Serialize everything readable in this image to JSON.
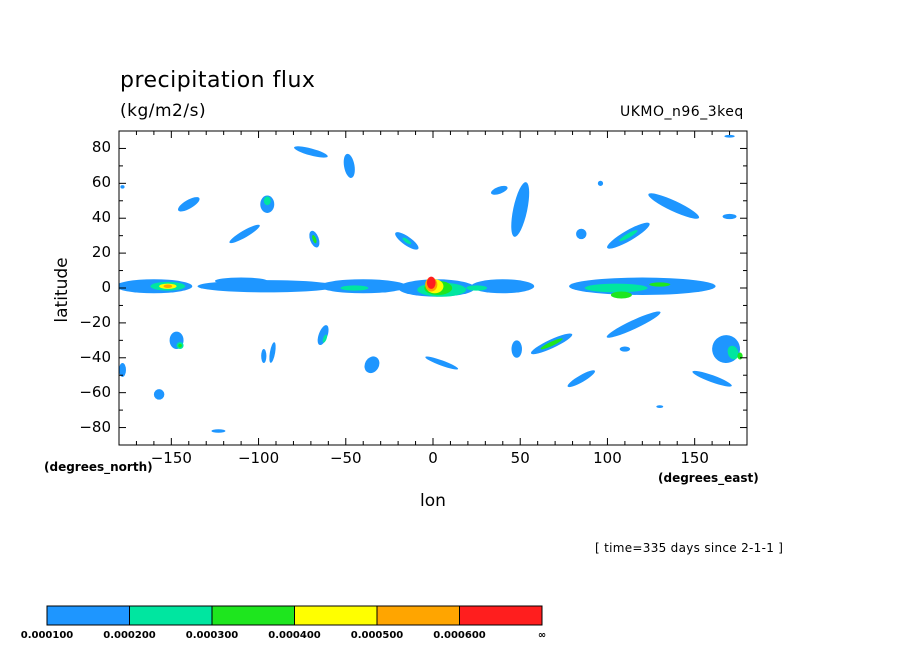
{
  "chart_data": {
    "type": "heatmap",
    "title": "precipitation flux",
    "units": "(kg/m2/s)",
    "source_label": "UKMO_n96_3keq",
    "time_label": "[ time=335 days since 2-1-1 ]",
    "xlabel": "lon",
    "ylabel": "latitude",
    "x_units": "(degrees_east)",
    "y_units": "(degrees_north)",
    "xlim": [
      -180,
      180
    ],
    "ylim": [
      -90,
      90
    ],
    "x_ticks": [
      -150,
      -100,
      -50,
      0,
      50,
      100,
      150
    ],
    "x_tick_labels": [
      "−150",
      "−100",
      "−50",
      "0",
      "50",
      "100",
      "150"
    ],
    "y_ticks": [
      80,
      60,
      40,
      20,
      0,
      -20,
      -40,
      -60,
      -80
    ],
    "y_tick_labels": [
      "80",
      "60",
      "40",
      "20",
      "0",
      "−20",
      "−40",
      "−60",
      "−80"
    ],
    "levels": [
      0.0001,
      0.0002,
      0.0003,
      0.0004,
      0.0005,
      0.0006
    ],
    "level_labels": [
      "0.000100",
      "0.000200",
      "0.000300",
      "0.000400",
      "0.000500",
      "0.000600",
      "∞"
    ],
    "level_colors": [
      "#1e96ff",
      "#00e6a0",
      "#1ee61e",
      "#ffff00",
      "#ffa500",
      "#ff1e1e"
    ],
    "regions": [
      {
        "lon": -70,
        "lat": 78,
        "rx": 10,
        "ry": 2,
        "rot": -15,
        "level": 1
      },
      {
        "lon": -48,
        "lat": 70,
        "rx": 3,
        "ry": 7,
        "rot": 10,
        "level": 1
      },
      {
        "lon": -140,
        "lat": 48,
        "rx": 7,
        "ry": 2.5,
        "rot": 30,
        "level": 1
      },
      {
        "lon": -95,
        "lat": 48,
        "rx": 4,
        "ry": 5,
        "rot": 0,
        "level": 1
      },
      {
        "lon": -95,
        "lat": 50,
        "rx": 2,
        "ry": 2.5,
        "rot": 0,
        "level": 2
      },
      {
        "lon": -108,
        "lat": 31,
        "rx": 10,
        "ry": 2,
        "rot": 30,
        "level": 1
      },
      {
        "lon": -68,
        "lat": 28,
        "rx": 2.5,
        "ry": 5,
        "rot": 20,
        "level": 1
      },
      {
        "lon": -68,
        "lat": 28,
        "rx": 1,
        "ry": 2.5,
        "rot": 20,
        "level": 3
      },
      {
        "lon": -15,
        "lat": 27,
        "rx": 8,
        "ry": 2.5,
        "rot": -35,
        "level": 1
      },
      {
        "lon": -15,
        "lat": 27,
        "rx": 3,
        "ry": 1,
        "rot": -35,
        "level": 2
      },
      {
        "lon": 50,
        "lat": 45,
        "rx": 4,
        "ry": 16,
        "rot": -12,
        "level": 1
      },
      {
        "lon": 38,
        "lat": 56,
        "rx": 5,
        "ry": 2,
        "rot": 20,
        "level": 1
      },
      {
        "lon": 112,
        "lat": 30,
        "rx": 14,
        "ry": 3,
        "rot": 30,
        "level": 1
      },
      {
        "lon": 112,
        "lat": 30,
        "rx": 6,
        "ry": 1.2,
        "rot": 30,
        "level": 2
      },
      {
        "lon": 138,
        "lat": 47,
        "rx": 16,
        "ry": 3,
        "rot": -25,
        "level": 1
      },
      {
        "lon": 170,
        "lat": 41,
        "rx": 4,
        "ry": 1.5,
        "rot": 0,
        "level": 1
      },
      {
        "lon": 85,
        "lat": 31,
        "rx": 3,
        "ry": 3,
        "rot": 0,
        "level": 1
      },
      {
        "lon": -160,
        "lat": 1,
        "rx": 22,
        "ry": 4,
        "rot": 0,
        "level": 1
      },
      {
        "lon": -152,
        "lat": 1,
        "rx": 10,
        "ry": 2.5,
        "rot": 0,
        "level": 2
      },
      {
        "lon": -152,
        "lat": 1,
        "rx": 5,
        "ry": 1.5,
        "rot": 0,
        "level": 4
      },
      {
        "lon": -152,
        "lat": 1,
        "rx": 2.5,
        "ry": 1,
        "rot": 0,
        "level": 5
      },
      {
        "lon": -95,
        "lat": 1,
        "rx": 40,
        "ry": 3.5,
        "rot": 0,
        "level": 1
      },
      {
        "lon": -110,
        "lat": 4,
        "rx": 15,
        "ry": 2,
        "rot": 0,
        "level": 1
      },
      {
        "lon": -40,
        "lat": 1,
        "rx": 25,
        "ry": 4,
        "rot": 0,
        "level": 1
      },
      {
        "lon": -45,
        "lat": 0,
        "rx": 8,
        "ry": 1.5,
        "rot": 0,
        "level": 2
      },
      {
        "lon": 2,
        "lat": 0,
        "rx": 22,
        "ry": 5,
        "rot": 0,
        "level": 1
      },
      {
        "lon": 5,
        "lat": -1,
        "rx": 14,
        "ry": 4,
        "rot": 0,
        "level": 2
      },
      {
        "lon": 3,
        "lat": 0,
        "rx": 8,
        "ry": 4,
        "rot": 0,
        "level": 3
      },
      {
        "lon": 1,
        "lat": 1,
        "rx": 5,
        "ry": 4,
        "rot": 0,
        "level": 4
      },
      {
        "lon": -1,
        "lat": 2,
        "rx": 3.5,
        "ry": 4,
        "rot": 0,
        "level": 5
      },
      {
        "lon": -1,
        "lat": 3,
        "rx": 2.5,
        "ry": 3.5,
        "rot": 0,
        "level": 6
      },
      {
        "lon": 40,
        "lat": 1,
        "rx": 18,
        "ry": 4,
        "rot": 0,
        "level": 1
      },
      {
        "lon": 25,
        "lat": 0,
        "rx": 6,
        "ry": 1.5,
        "rot": 0,
        "level": 2
      },
      {
        "lon": 120,
        "lat": 1,
        "rx": 42,
        "ry": 5,
        "rot": 0,
        "level": 1
      },
      {
        "lon": 105,
        "lat": 0,
        "rx": 18,
        "ry": 2.5,
        "rot": 0,
        "level": 2
      },
      {
        "lon": 108,
        "lat": -4,
        "rx": 6,
        "ry": 2,
        "rot": 0,
        "level": 3
      },
      {
        "lon": 130,
        "lat": 2,
        "rx": 6,
        "ry": 1.2,
        "rot": 0,
        "level": 3
      },
      {
        "lon": -147,
        "lat": -30,
        "rx": 4,
        "ry": 5,
        "rot": 0,
        "level": 1
      },
      {
        "lon": -145,
        "lat": -33,
        "rx": 2,
        "ry": 2,
        "rot": 0,
        "level": 2
      },
      {
        "lon": -145,
        "lat": -33,
        "rx": 1,
        "ry": 1,
        "rot": 0,
        "level": 3
      },
      {
        "lon": -97,
        "lat": -39,
        "rx": 1.5,
        "ry": 4,
        "rot": 0,
        "level": 1
      },
      {
        "lon": -92,
        "lat": -37,
        "rx": 1.5,
        "ry": 6,
        "rot": -10,
        "level": 1
      },
      {
        "lon": -63,
        "lat": -27,
        "rx": 2.5,
        "ry": 6,
        "rot": -20,
        "level": 1
      },
      {
        "lon": -62,
        "lat": -29,
        "rx": 1,
        "ry": 2.5,
        "rot": -20,
        "level": 2
      },
      {
        "lon": -35,
        "lat": -44,
        "rx": 4,
        "ry": 5,
        "rot": -30,
        "level": 1
      },
      {
        "lon": 5,
        "lat": -43,
        "rx": 10,
        "ry": 1.5,
        "rot": -20,
        "level": 1
      },
      {
        "lon": 48,
        "lat": -35,
        "rx": 3,
        "ry": 5,
        "rot": 0,
        "level": 1
      },
      {
        "lon": 68,
        "lat": -32,
        "rx": 13,
        "ry": 2.5,
        "rot": 25,
        "level": 1
      },
      {
        "lon": 68,
        "lat": -32,
        "rx": 7,
        "ry": 1.2,
        "rot": 25,
        "level": 3
      },
      {
        "lon": 115,
        "lat": -21,
        "rx": 17,
        "ry": 2.5,
        "rot": 25,
        "level": 1
      },
      {
        "lon": 168,
        "lat": -35,
        "rx": 8,
        "ry": 8,
        "rot": 20,
        "level": 1
      },
      {
        "lon": 160,
        "lat": -52,
        "rx": 12,
        "ry": 2,
        "rot": -20,
        "level": 1
      },
      {
        "lon": 172,
        "lat": -37,
        "rx": 3,
        "ry": 4,
        "rot": 20,
        "level": 2
      },
      {
        "lon": 176,
        "lat": -39,
        "rx": 1.5,
        "ry": 2,
        "rot": 0,
        "level": 3
      },
      {
        "lon": 85,
        "lat": -52,
        "rx": 9,
        "ry": 2,
        "rot": 30,
        "level": 1
      },
      {
        "lon": 110,
        "lat": -35,
        "rx": 3,
        "ry": 1.5,
        "rot": 0,
        "level": 1
      },
      {
        "lon": -178,
        "lat": -47,
        "rx": 2,
        "ry": 4,
        "rot": 0,
        "level": 1
      },
      {
        "lon": -157,
        "lat": -61,
        "rx": 3,
        "ry": 3,
        "rot": 0,
        "level": 1
      },
      {
        "lon": -123,
        "lat": -82,
        "rx": 4,
        "ry": 1,
        "rot": 0,
        "level": 1
      },
      {
        "lon": 170,
        "lat": 87,
        "rx": 3,
        "ry": 0.8,
        "rot": 0,
        "level": 1
      },
      {
        "lon": 96,
        "lat": 60,
        "rx": 1.5,
        "ry": 1.5,
        "rot": 0,
        "level": 1
      },
      {
        "lon": -178,
        "lat": 58,
        "rx": 1.2,
        "ry": 1,
        "rot": 0,
        "level": 1
      },
      {
        "lon": 130,
        "lat": -68,
        "rx": 2,
        "ry": 0.8,
        "rot": 0,
        "level": 1
      }
    ]
  }
}
